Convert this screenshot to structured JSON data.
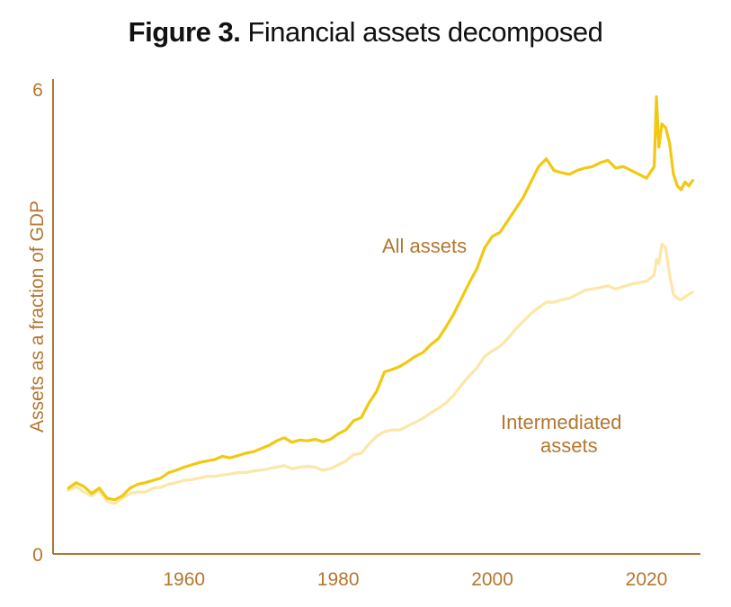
{
  "title": {
    "figure_label": "Figure 3.",
    "text": "Financial assets decomposed"
  },
  "colors": {
    "axis": "#b4762f",
    "all_assets": "#f2c811",
    "intermediated_assets": "#fbe7a6",
    "title": "#111111"
  },
  "chart_data": {
    "type": "line",
    "title": "Figure 3. Financial assets decomposed",
    "xlabel": "",
    "ylabel": "Assets as a fraction of GDP",
    "xlim": [
      1943,
      2027
    ],
    "ylim": [
      0,
      6
    ],
    "x_ticks": [
      1960,
      1980,
      2000,
      2020
    ],
    "y_ticks": [
      0,
      6
    ],
    "grid": false,
    "legend": "none",
    "annotations": [
      {
        "text": "All assets",
        "series": "All assets"
      },
      {
        "text": "Intermediated assets",
        "series": "Intermediated assets"
      }
    ],
    "series": [
      {
        "name": "All assets",
        "color": "#f2c811",
        "x": [
          1945,
          1946,
          1947,
          1948,
          1949,
          1950,
          1951,
          1952,
          1953,
          1954,
          1955,
          1956,
          1957,
          1958,
          1959,
          1960,
          1961,
          1962,
          1963,
          1964,
          1965,
          1966,
          1967,
          1968,
          1969,
          1970,
          1971,
          1972,
          1973,
          1974,
          1975,
          1976,
          1977,
          1978,
          1979,
          1980,
          1981,
          1982,
          1983,
          1984,
          1985,
          1986,
          1987,
          1988,
          1989,
          1990,
          1991,
          1992,
          1993,
          1994,
          1995,
          1996,
          1997,
          1998,
          1999,
          2000,
          2001,
          2002,
          2003,
          2004,
          2005,
          2006,
          2007,
          2008,
          2009,
          2010,
          2011,
          2012,
          2013,
          2014,
          2015,
          2016,
          2017,
          2018,
          2019,
          2020,
          2021,
          2021.3,
          2021.6,
          2022,
          2022.5,
          2023,
          2023.5,
          2024,
          2024.5,
          2025,
          2025.5,
          2026
        ],
        "y": [
          0.85,
          0.92,
          0.87,
          0.78,
          0.85,
          0.72,
          0.7,
          0.75,
          0.85,
          0.9,
          0.92,
          0.95,
          0.98,
          1.05,
          1.08,
          1.12,
          1.15,
          1.18,
          1.2,
          1.22,
          1.26,
          1.24,
          1.27,
          1.3,
          1.32,
          1.36,
          1.4,
          1.46,
          1.5,
          1.44,
          1.47,
          1.46,
          1.48,
          1.45,
          1.48,
          1.55,
          1.6,
          1.72,
          1.76,
          1.95,
          2.1,
          2.35,
          2.38,
          2.42,
          2.48,
          2.55,
          2.6,
          2.7,
          2.78,
          2.93,
          3.1,
          3.3,
          3.5,
          3.68,
          3.95,
          4.1,
          4.15,
          4.3,
          4.45,
          4.6,
          4.8,
          5.0,
          5.1,
          4.95,
          4.92,
          4.9,
          4.95,
          4.98,
          5.0,
          5.05,
          5.08,
          4.98,
          5.0,
          4.95,
          4.9,
          4.85,
          5.0,
          5.9,
          5.25,
          5.55,
          5.5,
          5.3,
          4.9,
          4.75,
          4.7,
          4.8,
          4.75,
          4.82
        ]
      },
      {
        "name": "Intermediated assets",
        "color": "#fbe7a6",
        "x": [
          1945,
          1946,
          1947,
          1948,
          1949,
          1950,
          1951,
          1952,
          1953,
          1954,
          1955,
          1956,
          1957,
          1958,
          1959,
          1960,
          1961,
          1962,
          1963,
          1964,
          1965,
          1966,
          1967,
          1968,
          1969,
          1970,
          1971,
          1972,
          1973,
          1974,
          1975,
          1976,
          1977,
          1978,
          1979,
          1980,
          1981,
          1982,
          1983,
          1984,
          1985,
          1986,
          1987,
          1988,
          1989,
          1990,
          1991,
          1992,
          1993,
          1994,
          1995,
          1996,
          1997,
          1998,
          1999,
          2000,
          2001,
          2002,
          2003,
          2004,
          2005,
          2006,
          2007,
          2008,
          2009,
          2010,
          2011,
          2012,
          2013,
          2014,
          2015,
          2016,
          2017,
          2018,
          2019,
          2020,
          2021,
          2021.3,
          2021.6,
          2022,
          2022.5,
          2023,
          2023.5,
          2024,
          2024.5,
          2025,
          2025.5,
          2026
        ],
        "y": [
          0.82,
          0.87,
          0.8,
          0.75,
          0.82,
          0.68,
          0.65,
          0.72,
          0.78,
          0.8,
          0.8,
          0.85,
          0.86,
          0.9,
          0.92,
          0.95,
          0.96,
          0.98,
          1.0,
          1.0,
          1.02,
          1.03,
          1.05,
          1.05,
          1.07,
          1.08,
          1.1,
          1.12,
          1.14,
          1.1,
          1.12,
          1.13,
          1.12,
          1.08,
          1.1,
          1.15,
          1.2,
          1.28,
          1.3,
          1.42,
          1.52,
          1.58,
          1.6,
          1.6,
          1.65,
          1.7,
          1.75,
          1.82,
          1.88,
          1.95,
          2.05,
          2.18,
          2.3,
          2.4,
          2.55,
          2.62,
          2.68,
          2.78,
          2.9,
          3.0,
          3.1,
          3.18,
          3.25,
          3.25,
          3.28,
          3.3,
          3.35,
          3.4,
          3.42,
          3.44,
          3.46,
          3.42,
          3.45,
          3.48,
          3.5,
          3.52,
          3.6,
          3.8,
          3.75,
          4.0,
          3.95,
          3.6,
          3.35,
          3.3,
          3.28,
          3.32,
          3.35,
          3.38
        ]
      }
    ]
  }
}
